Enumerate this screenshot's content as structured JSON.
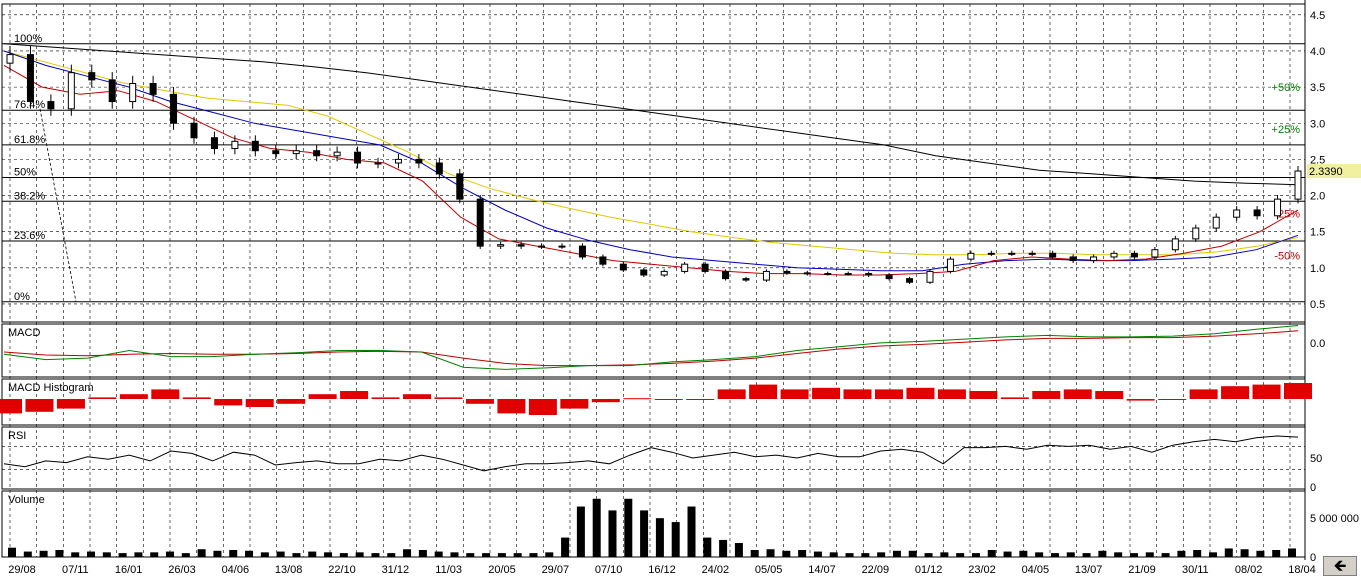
{
  "chart_data": {
    "type": "candlestick",
    "x_ticks": [
      "29/08",
      "07/11",
      "16/01",
      "26/03",
      "04/06",
      "13/08",
      "22/10",
      "31/12",
      "11/03",
      "20/05",
      "29/07",
      "07/10",
      "16/12",
      "24/02",
      "05/05",
      "14/07",
      "22/09",
      "01/12",
      "23/02",
      "04/05",
      "13/07",
      "21/09",
      "30/11",
      "08/02",
      "18/04"
    ],
    "last_price_label": "2.3390",
    "price_panel": {
      "y_ticks": [
        "4.5",
        "4.0",
        "3.5",
        "3.0",
        "2.5",
        "2.0",
        "1.5",
        "1.0",
        "0.5"
      ],
      "ylim": [
        0.25,
        4.65
      ],
      "fib_levels": [
        {
          "label": "100%",
          "value": 4.1
        },
        {
          "label": "76.4%",
          "value": 3.18
        },
        {
          "label": "61.8%",
          "value": 2.7
        },
        {
          "label": "50%",
          "value": 2.25
        },
        {
          "label": "38.2%",
          "value": 1.92
        },
        {
          "label": "23.6%",
          "value": 1.37
        },
        {
          "label": "0%",
          "value": 0.53
        }
      ],
      "envelope_labels": [
        {
          "label": "+50%",
          "value": 3.5,
          "color": "#008000"
        },
        {
          "label": "+25%",
          "value": 2.92,
          "color": "#008000"
        },
        {
          "label": "-25%",
          "value": 1.75,
          "color": "#c00000"
        },
        {
          "label": "-50%",
          "value": 1.17,
          "color": "#c00000"
        }
      ],
      "close": [
        3.95,
        3.3,
        3.2,
        3.7,
        3.6,
        3.3,
        3.55,
        3.4,
        3.0,
        2.8,
        2.65,
        2.75,
        2.62,
        2.58,
        2.62,
        2.55,
        2.6,
        2.45,
        2.45,
        2.5,
        2.45,
        2.3,
        1.95,
        1.3,
        1.32,
        1.3,
        1.3,
        1.3,
        1.15,
        1.05,
        0.97,
        0.9,
        0.95,
        1.05,
        0.95,
        0.85,
        0.83,
        0.95,
        0.93,
        0.92,
        0.92,
        0.92,
        0.9,
        0.85,
        0.8,
        0.95,
        1.12,
        1.2,
        1.2,
        1.2,
        1.2,
        1.15,
        1.1,
        1.15,
        1.2,
        1.15,
        1.25,
        1.4,
        1.55,
        1.7,
        1.8,
        1.72,
        1.95,
        2.339
      ],
      "ma_black": [
        4.1,
        4.05,
        4.0,
        3.95,
        3.9,
        3.85,
        3.78,
        3.7,
        3.6,
        3.5,
        3.4,
        3.3,
        3.2,
        3.1,
        3.0,
        2.9,
        2.8,
        2.7,
        2.55,
        2.45,
        2.35,
        2.3,
        2.25,
        2.2,
        2.17,
        2.15
      ],
      "ma_yellow": [
        4.0,
        3.85,
        3.7,
        3.55,
        3.45,
        3.35,
        3.3,
        3.25,
        3.1,
        2.85,
        2.6,
        2.3,
        2.1,
        1.95,
        1.82,
        1.7,
        1.6,
        1.5,
        1.42,
        1.35,
        1.3,
        1.25,
        1.2,
        1.18,
        1.18,
        1.2,
        1.2,
        1.18,
        1.18,
        1.18,
        1.22,
        1.3,
        1.42
      ],
      "ma_blue": [
        4.0,
        3.8,
        3.65,
        3.5,
        3.3,
        3.15,
        3.0,
        2.9,
        2.8,
        2.7,
        2.45,
        2.1,
        1.8,
        1.55,
        1.38,
        1.25,
        1.15,
        1.1,
        1.05,
        1.0,
        0.98,
        0.96,
        0.96,
        1.05,
        1.1,
        1.12,
        1.1,
        1.1,
        1.12,
        1.15,
        1.25,
        1.45
      ],
      "ma_red": [
        3.8,
        3.5,
        3.4,
        3.45,
        3.3,
        3.05,
        2.8,
        2.65,
        2.6,
        2.5,
        2.45,
        2.2,
        1.7,
        1.4,
        1.3,
        1.2,
        1.1,
        1.05,
        1.0,
        0.95,
        0.92,
        0.92,
        0.9,
        0.9,
        0.92,
        0.95,
        1.1,
        1.15,
        1.12,
        1.1,
        1.12,
        1.2,
        1.3,
        1.5,
        1.8
      ]
    },
    "macd_panel": {
      "title": "MACD",
      "y_ticks": [
        "0.0"
      ],
      "ylim": [
        -0.45,
        0.25
      ],
      "macd": [
        -0.15,
        -0.22,
        -0.2,
        -0.1,
        -0.18,
        -0.18,
        -0.15,
        -0.13,
        -0.1,
        -0.1,
        -0.12,
        -0.32,
        -0.35,
        -0.33,
        -0.3,
        -0.3,
        -0.25,
        -0.22,
        -0.18,
        -0.1,
        -0.05,
        0.0,
        0.02,
        0.05,
        0.08,
        0.1,
        0.08,
        0.08,
        0.09,
        0.12,
        0.18,
        0.23
      ],
      "signal": [
        -0.12,
        -0.16,
        -0.17,
        -0.15,
        -0.14,
        -0.15,
        -0.15,
        -0.14,
        -0.12,
        -0.11,
        -0.12,
        -0.2,
        -0.27,
        -0.3,
        -0.3,
        -0.29,
        -0.27,
        -0.24,
        -0.2,
        -0.14,
        -0.08,
        -0.04,
        -0.02,
        0.01,
        0.04,
        0.06,
        0.06,
        0.07,
        0.07,
        0.09,
        0.12,
        0.16
      ]
    },
    "histogram_panel": {
      "title": "MACD Histogram",
      "values": [
        -0.9,
        -0.8,
        -0.6,
        0.1,
        0.3,
        0.6,
        0.1,
        -0.4,
        -0.5,
        -0.3,
        0.3,
        0.5,
        0.1,
        0.3,
        0.1,
        -0.3,
        -0.9,
        -1.0,
        -0.6,
        -0.2,
        0.05,
        0.0,
        0.0,
        0.6,
        0.9,
        0.6,
        0.7,
        0.6,
        0.6,
        0.7,
        0.6,
        0.5,
        0.1,
        0.5,
        0.6,
        0.5,
        -0.1,
        0.0,
        0.6,
        0.8,
        0.9,
        1.0
      ]
    },
    "rsi_panel": {
      "title": "RSI",
      "y_ticks": [
        "50",
        "0"
      ],
      "ylim": [
        0,
        100
      ],
      "values": [
        40,
        35,
        45,
        42,
        52,
        48,
        55,
        45,
        62,
        58,
        45,
        60,
        55,
        38,
        42,
        45,
        40,
        40,
        48,
        45,
        55,
        48,
        38,
        28,
        35,
        40,
        40,
        42,
        45,
        40,
        55,
        68,
        60,
        50,
        55,
        60,
        52,
        55,
        50,
        58,
        52,
        52,
        62,
        65,
        60,
        40,
        68,
        68,
        70,
        65,
        72,
        70,
        72,
        65,
        70,
        60,
        72,
        78,
        82,
        78,
        85,
        88,
        86
      ]
    },
    "volume_panel": {
      "title": "Volume",
      "y_ticks": [
        "5 000 000",
        "0"
      ],
      "ylim": [
        0,
        8500000
      ],
      "values": [
        1200000,
        700000,
        800000,
        900000,
        600000,
        700000,
        600000,
        500000,
        600000,
        600000,
        700000,
        500000,
        1000000,
        800000,
        900000,
        800000,
        600000,
        700000,
        500000,
        700000,
        600000,
        500000,
        600000,
        500000,
        500000,
        1000000,
        900000,
        700000,
        600000,
        500000,
        500000,
        500000,
        500000,
        500000,
        600000,
        2500000,
        6500000,
        7500000,
        6000000,
        7500000,
        6000000,
        5000000,
        4500000,
        6500000,
        2500000,
        2200000,
        1800000,
        900000,
        1000000,
        800000,
        900000,
        700000,
        600000,
        500000,
        500000,
        600000,
        800000,
        800000,
        500000,
        600000,
        500000,
        500000,
        900000,
        700000,
        800000,
        600000,
        500000,
        600000,
        500000,
        800000,
        600000,
        500000,
        600000,
        500000,
        800000,
        900000,
        600000,
        1100000,
        1000000,
        800000,
        900000,
        1100000
      ]
    }
  }
}
